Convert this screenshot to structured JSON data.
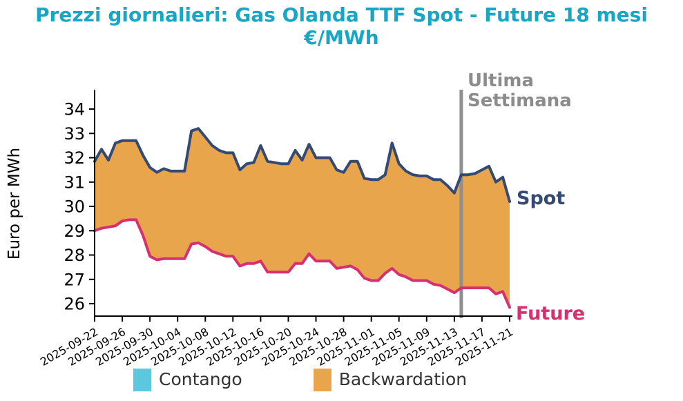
{
  "title": {
    "line1": "Prezzi giornalieri: Gas Olanda TTF Spot - Future 18 mesi",
    "line2": "€/MWh"
  },
  "y_axis_label": "Euro per MWh",
  "annotations": {
    "last_week_line1": "Ultima",
    "last_week_line2": "Settimana",
    "spot": "Spot",
    "future": "Future"
  },
  "legend": {
    "items": [
      {
        "label": "Contango",
        "color": "#5bc8dc"
      },
      {
        "label": "Backwardation",
        "color": "#e9a54b"
      }
    ]
  },
  "colors": {
    "title": "#19a6c6",
    "spot_line": "#334a74",
    "future_line": "#d5306f",
    "backwardation_fill": "#e9a54b",
    "contango_fill": "#5bc8dc",
    "last_week_line": "#8f8f8f",
    "last_week_text": "#8c8c8c",
    "axis": "#000000"
  },
  "chart_data": {
    "type": "area",
    "title": "Prezzi giornalieri: Gas Olanda TTF Spot - Future 18 mesi €/MWh",
    "ylabel": "Euro per MWh",
    "xlabel": "",
    "grid": false,
    "legend_position": "bottom",
    "ylim": [
      25.5,
      34.8
    ],
    "y_ticks": [
      26,
      27,
      28,
      29,
      30,
      31,
      32,
      33,
      34
    ],
    "x_tick_step": 4,
    "x_tick_rotation": -30,
    "vline": {
      "date": "2025-11-14",
      "label": "Ultima Settimana"
    },
    "x": [
      "2025-09-22",
      "2025-09-23",
      "2025-09-24",
      "2025-09-25",
      "2025-09-26",
      "2025-09-27",
      "2025-09-28",
      "2025-09-29",
      "2025-09-30",
      "2025-10-01",
      "2025-10-02",
      "2025-10-03",
      "2025-10-04",
      "2025-10-05",
      "2025-10-06",
      "2025-10-07",
      "2025-10-08",
      "2025-10-09",
      "2025-10-10",
      "2025-10-11",
      "2025-10-12",
      "2025-10-13",
      "2025-10-14",
      "2025-10-15",
      "2025-10-16",
      "2025-10-17",
      "2025-10-18",
      "2025-10-19",
      "2025-10-20",
      "2025-10-21",
      "2025-10-22",
      "2025-10-23",
      "2025-10-24",
      "2025-10-25",
      "2025-10-26",
      "2025-10-27",
      "2025-10-28",
      "2025-10-29",
      "2025-10-30",
      "2025-10-31",
      "2025-11-01",
      "2025-11-02",
      "2025-11-03",
      "2025-11-04",
      "2025-11-05",
      "2025-11-06",
      "2025-11-07",
      "2025-11-08",
      "2025-11-09",
      "2025-11-10",
      "2025-11-11",
      "2025-11-12",
      "2025-11-13",
      "2025-11-14",
      "2025-11-15",
      "2025-11-16",
      "2025-11-17",
      "2025-11-18",
      "2025-11-19",
      "2025-11-20",
      "2025-11-21"
    ],
    "series": [
      {
        "name": "Spot",
        "color": "#334a74",
        "values": [
          31.85,
          32.35,
          31.9,
          32.6,
          32.7,
          32.7,
          32.7,
          32.1,
          31.6,
          31.4,
          31.55,
          31.45,
          31.45,
          31.45,
          33.1,
          33.2,
          32.85,
          32.5,
          32.3,
          32.2,
          32.2,
          31.5,
          31.75,
          31.8,
          32.5,
          31.85,
          31.8,
          31.75,
          31.75,
          32.3,
          31.9,
          32.55,
          32.0,
          32.0,
          32.0,
          31.5,
          31.4,
          31.85,
          31.85,
          31.15,
          31.1,
          31.1,
          31.3,
          32.6,
          31.75,
          31.45,
          31.3,
          31.25,
          31.25,
          31.1,
          31.1,
          30.85,
          30.55,
          31.3,
          31.3,
          31.35,
          31.5,
          31.65,
          31.0,
          31.2,
          30.2
        ]
      },
      {
        "name": "Future",
        "color": "#d5306f",
        "values": [
          29.0,
          29.1,
          29.15,
          29.2,
          29.4,
          29.45,
          29.45,
          28.8,
          27.95,
          27.8,
          27.85,
          27.85,
          27.85,
          27.85,
          28.45,
          28.5,
          28.35,
          28.15,
          28.05,
          27.95,
          27.95,
          27.55,
          27.65,
          27.65,
          27.75,
          27.3,
          27.3,
          27.3,
          27.3,
          27.65,
          27.65,
          28.05,
          27.75,
          27.75,
          27.75,
          27.45,
          27.5,
          27.55,
          27.4,
          27.05,
          26.95,
          26.95,
          27.25,
          27.45,
          27.2,
          27.1,
          26.95,
          26.95,
          26.95,
          26.8,
          26.75,
          26.6,
          26.45,
          26.65,
          26.65,
          26.65,
          26.65,
          26.65,
          26.4,
          26.5,
          25.85
        ]
      }
    ],
    "fill_between": {
      "label": "Backwardation",
      "color": "#e9a54b",
      "rule": "area between Spot and Future, orange where Spot > Future"
    }
  }
}
